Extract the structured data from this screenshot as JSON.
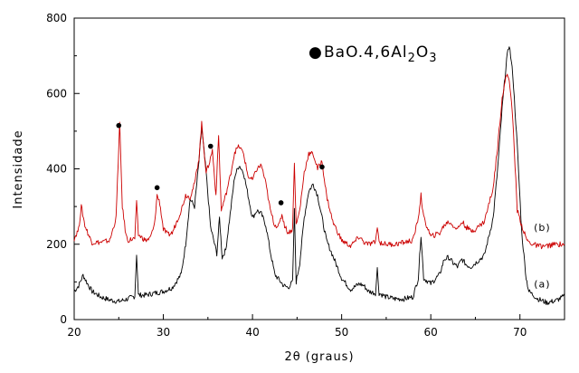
{
  "chart_data": {
    "type": "line",
    "xlabel": "2θ (graus)",
    "ylabel": "Intensidade",
    "xlim": [
      20,
      75
    ],
    "ylim": [
      0,
      800
    ],
    "xticks": [
      20,
      30,
      40,
      50,
      60,
      70
    ],
    "yticks": [
      0,
      200,
      400,
      600,
      800
    ],
    "grid": false,
    "legend": {
      "placement": "top-center",
      "marker": "●",
      "text": "BaO.4,6Al",
      "sub1": "2",
      "mid": "O",
      "sub2": "3"
    },
    "series": [
      {
        "name": "(a)",
        "color": "#000000",
        "points": [
          [
            20,
            75
          ],
          [
            20.5,
            90
          ],
          [
            21,
            118
          ],
          [
            21.5,
            95
          ],
          [
            22,
            75
          ],
          [
            23,
            60
          ],
          [
            24,
            52
          ],
          [
            25,
            48
          ],
          [
            26,
            55
          ],
          [
            26.8,
            62
          ],
          [
            27,
            175
          ],
          [
            27.2,
            65
          ],
          [
            28,
            65
          ],
          [
            29,
            70
          ],
          [
            30,
            75
          ],
          [
            31,
            85
          ],
          [
            32,
            120
          ],
          [
            32.5,
            200
          ],
          [
            33,
            320
          ],
          [
            33.5,
            300
          ],
          [
            34,
            420
          ],
          [
            34.3,
            510
          ],
          [
            34.8,
            390
          ],
          [
            35.3,
            245
          ],
          [
            36,
            175
          ],
          [
            36.3,
            270
          ],
          [
            36.6,
            165
          ],
          [
            37,
            185
          ],
          [
            37.5,
            280
          ],
          [
            38,
            380
          ],
          [
            38.5,
            410
          ],
          [
            39,
            390
          ],
          [
            39.5,
            330
          ],
          [
            40,
            270
          ],
          [
            40.5,
            290
          ],
          [
            41,
            280
          ],
          [
            41.5,
            250
          ],
          [
            42,
            180
          ],
          [
            42.5,
            120
          ],
          [
            43,
            105
          ],
          [
            43.5,
            90
          ],
          [
            44,
            85
          ],
          [
            44.5,
            100
          ],
          [
            44.7,
            290
          ],
          [
            44.9,
            100
          ],
          [
            45.3,
            150
          ],
          [
            45.8,
            270
          ],
          [
            46.3,
            340
          ],
          [
            46.8,
            360
          ],
          [
            47.3,
            330
          ],
          [
            47.8,
            270
          ],
          [
            48.3,
            210
          ],
          [
            49,
            170
          ],
          [
            50,
            110
          ],
          [
            51,
            80
          ],
          [
            52,
            95
          ],
          [
            52.5,
            90
          ],
          [
            53,
            75
          ],
          [
            53.8,
            70
          ],
          [
            54,
            135
          ],
          [
            54.2,
            70
          ],
          [
            55,
            60
          ],
          [
            56,
            55
          ],
          [
            57,
            55
          ],
          [
            58,
            60
          ],
          [
            58.6,
            110
          ],
          [
            58.9,
            225
          ],
          [
            59.2,
            110
          ],
          [
            60,
            95
          ],
          [
            61,
            120
          ],
          [
            61.5,
            160
          ],
          [
            62,
            165
          ],
          [
            62.5,
            150
          ],
          [
            63,
            140
          ],
          [
            63.5,
            160
          ],
          [
            64,
            145
          ],
          [
            64.5,
            140
          ],
          [
            65,
            150
          ],
          [
            66,
            170
          ],
          [
            67,
            270
          ],
          [
            67.5,
            400
          ],
          [
            68,
            560
          ],
          [
            68.5,
            690
          ],
          [
            68.8,
            730
          ],
          [
            69.2,
            650
          ],
          [
            69.7,
            460
          ],
          [
            70.2,
            230
          ],
          [
            70.7,
            110
          ],
          [
            71,
            75
          ],
          [
            72,
            55
          ],
          [
            73,
            45
          ],
          [
            74,
            50
          ],
          [
            75,
            62
          ]
        ]
      },
      {
        "name": "(b)",
        "color": "#cc0000",
        "points": [
          [
            20,
            215
          ],
          [
            20.5,
            240
          ],
          [
            20.8,
            300
          ],
          [
            21.2,
            250
          ],
          [
            21.7,
            220
          ],
          [
            22,
            205
          ],
          [
            23,
            205
          ],
          [
            24,
            210
          ],
          [
            24.7,
            270
          ],
          [
            25.1,
            520
          ],
          [
            25.4,
            300
          ],
          [
            25.8,
            225
          ],
          [
            26,
            210
          ],
          [
            26.8,
            215
          ],
          [
            27,
            310
          ],
          [
            27.2,
            225
          ],
          [
            28,
            210
          ],
          [
            28.5,
            215
          ],
          [
            29,
            250
          ],
          [
            29.3,
            330
          ],
          [
            29.6,
            310
          ],
          [
            30,
            240
          ],
          [
            30.5,
            225
          ],
          [
            31,
            230
          ],
          [
            31.5,
            260
          ],
          [
            32,
            290
          ],
          [
            32.5,
            330
          ],
          [
            33,
            325
          ],
          [
            33.5,
            360
          ],
          [
            34,
            430
          ],
          [
            34.3,
            520
          ],
          [
            34.8,
            390
          ],
          [
            35.2,
            420
          ],
          [
            35.5,
            450
          ],
          [
            35.9,
            330
          ],
          [
            36.2,
            490
          ],
          [
            36.5,
            290
          ],
          [
            37,
            330
          ],
          [
            37.5,
            380
          ],
          [
            38,
            445
          ],
          [
            38.5,
            460
          ],
          [
            39,
            440
          ],
          [
            39.5,
            380
          ],
          [
            40,
            370
          ],
          [
            40.5,
            400
          ],
          [
            41,
            410
          ],
          [
            41.5,
            360
          ],
          [
            42,
            290
          ],
          [
            42.5,
            250
          ],
          [
            43,
            250
          ],
          [
            43.3,
            280
          ],
          [
            43.6,
            250
          ],
          [
            44,
            230
          ],
          [
            44.5,
            240
          ],
          [
            44.7,
            420
          ],
          [
            44.9,
            250
          ],
          [
            45.3,
            290
          ],
          [
            45.8,
            390
          ],
          [
            46.3,
            440
          ],
          [
            46.8,
            440
          ],
          [
            47.3,
            400
          ],
          [
            47.8,
            420
          ],
          [
            48.3,
            330
          ],
          [
            49,
            260
          ],
          [
            50,
            210
          ],
          [
            51,
            195
          ],
          [
            52,
            220
          ],
          [
            52.5,
            205
          ],
          [
            53,
            200
          ],
          [
            53.8,
            205
          ],
          [
            54,
            250
          ],
          [
            54.2,
            205
          ],
          [
            55,
            200
          ],
          [
            56,
            200
          ],
          [
            57,
            205
          ],
          [
            58,
            210
          ],
          [
            58.6,
            270
          ],
          [
            58.9,
            330
          ],
          [
            59.2,
            270
          ],
          [
            60,
            220
          ],
          [
            61,
            230
          ],
          [
            61.5,
            250
          ],
          [
            62,
            260
          ],
          [
            62.5,
            250
          ],
          [
            63,
            240
          ],
          [
            63.5,
            260
          ],
          [
            64,
            245
          ],
          [
            64.5,
            235
          ],
          [
            65,
            240
          ],
          [
            66,
            260
          ],
          [
            67,
            350
          ],
          [
            67.5,
            460
          ],
          [
            68,
            590
          ],
          [
            68.5,
            650
          ],
          [
            68.8,
            640
          ],
          [
            69.2,
            530
          ],
          [
            69.7,
            290
          ],
          [
            70.2,
            250
          ],
          [
            70.7,
            215
          ],
          [
            71,
            205
          ],
          [
            72,
            195
          ],
          [
            73,
            195
          ],
          [
            74,
            200
          ],
          [
            75,
            200
          ]
        ]
      }
    ],
    "annotations": [
      {
        "marker": "●",
        "x": 25,
        "y": 515
      },
      {
        "marker": "●",
        "x": 29.3,
        "y": 350
      },
      {
        "marker": "●",
        "x": 35.3,
        "y": 460
      },
      {
        "marker": "●",
        "x": 43.2,
        "y": 310
      },
      {
        "marker": "●",
        "x": 47.8,
        "y": 405
      }
    ],
    "series_labels": [
      {
        "text": "(b)",
        "x": 72.5,
        "y": 235
      },
      {
        "text": "(a)",
        "x": 72.5,
        "y": 85
      }
    ]
  }
}
